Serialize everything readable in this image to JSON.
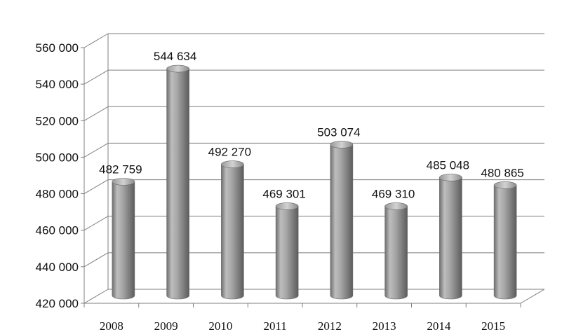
{
  "chart_data": {
    "type": "bar",
    "style": "3d-cylinder",
    "title": "",
    "xlabel": "",
    "ylabel": "",
    "categories": [
      "2008",
      "2009",
      "2010",
      "2011",
      "2012",
      "2013",
      "2014",
      "2015"
    ],
    "values": [
      482759,
      544634,
      492270,
      469301,
      503074,
      469310,
      485048,
      480865
    ],
    "data_labels": [
      "482 759",
      "544 634",
      "492 270",
      "469 301",
      "503 074",
      "469 310",
      "485 048",
      "480 865"
    ],
    "yticks": [
      420000,
      440000,
      460000,
      480000,
      500000,
      520000,
      540000,
      560000
    ],
    "ytick_labels": [
      "420 000",
      "440 000",
      "460 000",
      "480 000",
      "500 000",
      "520 000",
      "540 000",
      "560 000"
    ],
    "ylim": [
      420000,
      560000
    ],
    "grid": true,
    "legend": "none",
    "colors": {
      "bar": "#a6a6a6",
      "grid": "#7f7f7f",
      "text": "#111111"
    }
  }
}
